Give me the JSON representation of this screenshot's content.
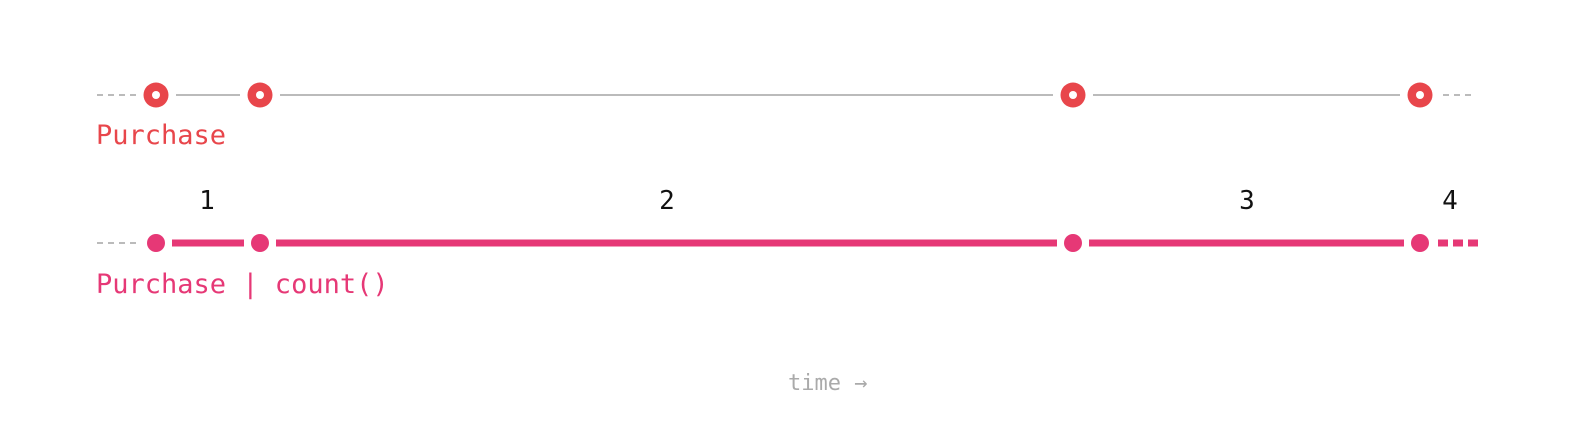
{
  "colors": {
    "event": "#e8464b",
    "signal": "#e63876",
    "line": "#bbbbbb",
    "dash": "#bbbbbb",
    "count_text": "#111111",
    "axis_text": "#aaaaaa"
  },
  "event_stream": {
    "label": "Purchase",
    "events": [
      {
        "index": 1
      },
      {
        "index": 2
      },
      {
        "index": 3
      },
      {
        "index": 4
      }
    ]
  },
  "count_stream": {
    "label": "Purchase | count()",
    "segments": [
      {
        "value": "1"
      },
      {
        "value": "2"
      },
      {
        "value": "3"
      },
      {
        "value": "4"
      }
    ]
  },
  "axis": {
    "label": "time →"
  }
}
